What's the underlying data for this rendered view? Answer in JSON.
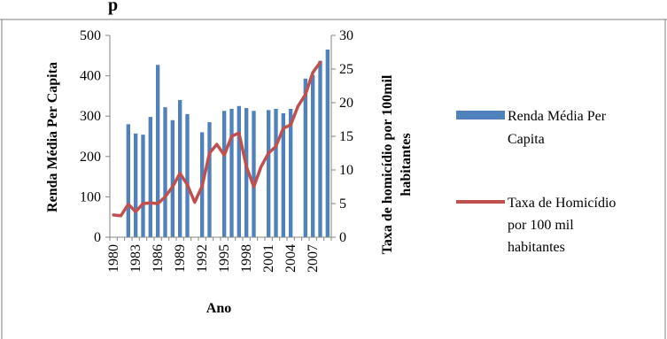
{
  "chart_data": {
    "type": "bar",
    "title": "p",
    "xlabel": "Ano",
    "ylabel_left": "Renda Média Per Capita",
    "ylabel_right_lines": [
      "Taxa de homicídio por 100mil",
      "habitantes"
    ],
    "ylim_left": [
      0,
      500
    ],
    "ylim_right": [
      0,
      30
    ],
    "yticks_left": [
      "0",
      "100",
      "200",
      "300",
      "400",
      "500"
    ],
    "yticks_right": [
      "0",
      "5",
      "10",
      "15",
      "20",
      "25",
      "30"
    ],
    "x": [
      1980,
      1981,
      1982,
      1983,
      1984,
      1985,
      1986,
      1987,
      1988,
      1989,
      1990,
      1991,
      1992,
      1993,
      1994,
      1995,
      1996,
      1997,
      1998,
      1999,
      2000,
      2001,
      2002,
      2003,
      2004,
      2005,
      2006,
      2007,
      2008,
      2009
    ],
    "x_tick_labels": [
      "1980",
      "1983",
      "1986",
      "1989",
      "1992",
      "1995",
      "1998",
      "2001",
      "2004",
      "2007"
    ],
    "legend_position": "right",
    "series": [
      {
        "name_lines": [
          "Renda Média Per",
          "Capita"
        ],
        "type": "bar",
        "axis": "left",
        "color": "#4F81BD",
        "values": [
          null,
          null,
          280,
          257,
          254,
          298,
          427,
          322,
          290,
          340,
          305,
          null,
          260,
          285,
          null,
          313,
          318,
          325,
          320,
          313,
          null,
          315,
          318,
          307,
          318,
          null,
          393,
          402,
          437,
          465
        ]
      },
      {
        "name_lines": [
          "Taxa de Homicídio",
          "por 100 mil",
          "habitantes"
        ],
        "type": "line",
        "axis": "right",
        "color": "#C0504D",
        "values": [
          3.3,
          3.2,
          4.9,
          3.8,
          5.0,
          5.1,
          5.0,
          6.0,
          7.5,
          9.5,
          7.8,
          5.2,
          7.6,
          12.5,
          13.8,
          12.2,
          15.0,
          15.5,
          10.5,
          7.5,
          10.5,
          12.5,
          13.5,
          16.2,
          16.7,
          19.5,
          21.2,
          24.5,
          26.0,
          null
        ]
      }
    ]
  }
}
